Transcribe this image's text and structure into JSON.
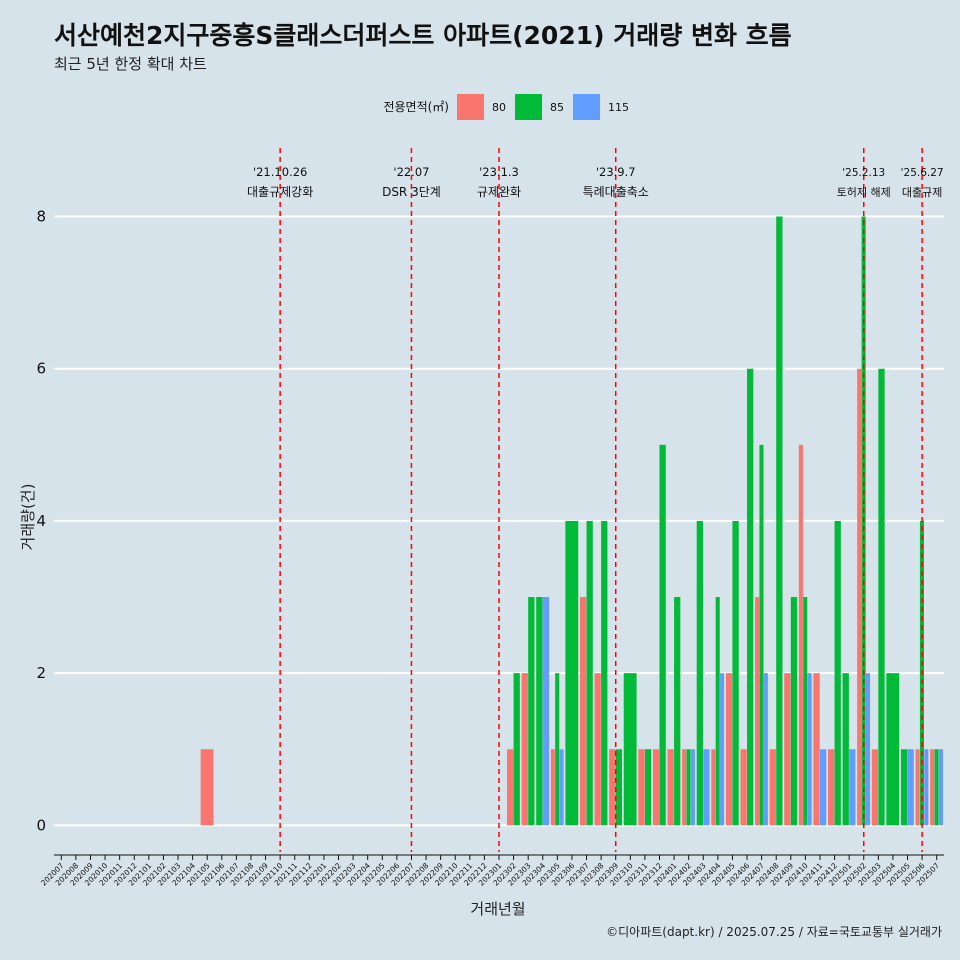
{
  "title": "서산예천2지구중흥S클래스더퍼스트 아파트(2021) 거래량 변화 흐름",
  "subtitle": "최근 5년 한정 확대 차트",
  "caption": "©디아파트(dapt.kr) / 2025.07.25 / 자료=국토교통부 실거래가",
  "colors": {
    "background": "#d7e3ea",
    "series_80": "#f8766d",
    "series_85": "#00ba38",
    "series_115": "#619cff",
    "event_line": "#ff0000"
  },
  "chart_data": {
    "type": "bar",
    "xlabel": "거래년월",
    "ylabel": "거래량(건)",
    "ylim": [
      -0.35,
      8.9
    ],
    "yticks": [
      0,
      2,
      4,
      6,
      8
    ],
    "grid": true,
    "legend": {
      "title": "전용면적(㎡)",
      "placement": "top",
      "entries": [
        "80",
        "85",
        "115"
      ]
    },
    "categories": [
      "202007",
      "202008",
      "202009",
      "202010",
      "202011",
      "202012",
      "202101",
      "202102",
      "202103",
      "202104",
      "202105",
      "202106",
      "202107",
      "202108",
      "202109",
      "202110",
      "202111",
      "202112",
      "202201",
      "202202",
      "202203",
      "202204",
      "202205",
      "202206",
      "202207",
      "202208",
      "202209",
      "202210",
      "202211",
      "202212",
      "202301",
      "202302",
      "202303",
      "202304",
      "202305",
      "202306",
      "202307",
      "202308",
      "202309",
      "202310",
      "202311",
      "202312",
      "202401",
      "202402",
      "202403",
      "202404",
      "202405",
      "202406",
      "202407",
      "202408",
      "202409",
      "202410",
      "202411",
      "202412",
      "202501",
      "202502",
      "202503",
      "202504",
      "202505",
      "202506",
      "202507"
    ],
    "series": [
      {
        "name": "80",
        "values": [
          0,
          0,
          0,
          0,
          0,
          0,
          0,
          0,
          0,
          0,
          1,
          0,
          0,
          0,
          0,
          0,
          0,
          0,
          0,
          0,
          0,
          0,
          0,
          0,
          0,
          0,
          0,
          0,
          0,
          0,
          0,
          1,
          2,
          0,
          1,
          0,
          3,
          2,
          1,
          0,
          1,
          1,
          1,
          1,
          0,
          1,
          2,
          1,
          3,
          1,
          2,
          5,
          2,
          1,
          0,
          6,
          1,
          0,
          0,
          1,
          1
        ]
      },
      {
        "name": "85",
        "values": [
          0,
          0,
          0,
          0,
          0,
          0,
          0,
          0,
          0,
          0,
          0,
          0,
          0,
          0,
          0,
          0,
          0,
          0,
          0,
          0,
          0,
          0,
          0,
          0,
          0,
          0,
          0,
          0,
          0,
          0,
          0,
          2,
          3,
          3,
          2,
          4,
          4,
          4,
          1,
          2,
          1,
          5,
          3,
          1,
          4,
          3,
          4,
          6,
          5,
          8,
          3,
          3,
          0,
          4,
          2,
          8,
          6,
          2,
          1,
          4,
          1
        ]
      },
      {
        "name": "115",
        "values": [
          0,
          0,
          0,
          0,
          0,
          0,
          0,
          0,
          0,
          0,
          0,
          0,
          0,
          0,
          0,
          0,
          0,
          0,
          0,
          0,
          0,
          0,
          0,
          0,
          0,
          0,
          0,
          0,
          0,
          0,
          0,
          0,
          0,
          3,
          1,
          0,
          0,
          0,
          0,
          0,
          0,
          0,
          0,
          1,
          1,
          2,
          0,
          0,
          2,
          0,
          0,
          2,
          1,
          0,
          1,
          2,
          0,
          0,
          1,
          1,
          1
        ]
      }
    ],
    "events": [
      {
        "date": "'21.10.26",
        "label": "대출규제강화",
        "month": "202110"
      },
      {
        "date": "'22.07",
        "label": "DSR 3단계",
        "month": "202207"
      },
      {
        "date": "'23.1.3",
        "label": "규제완화",
        "month": "202301"
      },
      {
        "date": "'23.9.7",
        "label": "특례대출축소",
        "month": "202309"
      },
      {
        "date": "'25.2.13",
        "label": "토허제 해제",
        "month": "202502"
      },
      {
        "date": "'25.6.27",
        "label": "대출규제",
        "month": "202506"
      }
    ]
  }
}
